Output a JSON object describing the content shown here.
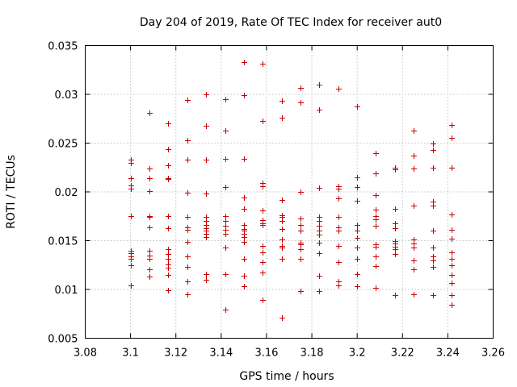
{
  "chart_data": {
    "type": "scatter",
    "title": "Day 204 of 2019, Rate Of TEC Index for receiver aut0",
    "xlabel": "GPS time / hours",
    "ylabel": "ROTI / TECUs",
    "xlim": [
      3.08,
      3.26
    ],
    "ylim": [
      0.005,
      0.035
    ],
    "xticks": [
      "3.08",
      "3.1",
      "3.12",
      "3.14",
      "3.16",
      "3.18",
      "3.2",
      "3.22",
      "3.24",
      "3.26"
    ],
    "yticks": [
      "0.005",
      "0.01",
      "0.015",
      "0.02",
      "0.025",
      "0.03",
      "0.035"
    ],
    "grid": true,
    "marker": "+",
    "color": "#cc0000",
    "series": [
      {
        "name": "ROTI",
        "points": [
          [
            3.1,
            0.0233
          ],
          [
            3.1,
            0.023
          ],
          [
            3.1,
            0.0214
          ],
          [
            3.1,
            0.0207
          ],
          [
            3.1,
            0.0203
          ],
          [
            3.1,
            0.0175
          ],
          [
            3.1,
            0.014
          ],
          [
            3.1,
            0.0137
          ],
          [
            3.1,
            0.0134
          ],
          [
            3.1,
            0.0131
          ],
          [
            3.1,
            0.0125
          ],
          [
            3.1,
            0.0104
          ],
          [
            3.1083,
            0.0281
          ],
          [
            3.1083,
            0.0224
          ],
          [
            3.1083,
            0.0214
          ],
          [
            3.1083,
            0.0201
          ],
          [
            3.1083,
            0.0175
          ],
          [
            3.1083,
            0.0174
          ],
          [
            3.1083,
            0.0164
          ],
          [
            3.1083,
            0.014
          ],
          [
            3.1083,
            0.0135
          ],
          [
            3.1083,
            0.0131
          ],
          [
            3.1083,
            0.0121
          ],
          [
            3.1083,
            0.0113
          ],
          [
            3.1167,
            0.027
          ],
          [
            3.1167,
            0.0244
          ],
          [
            3.1167,
            0.0227
          ],
          [
            3.1167,
            0.0214
          ],
          [
            3.1167,
            0.0213
          ],
          [
            3.1167,
            0.0175
          ],
          [
            3.1167,
            0.0163
          ],
          [
            3.1167,
            0.0141
          ],
          [
            3.1167,
            0.0136
          ],
          [
            3.1167,
            0.0131
          ],
          [
            3.1167,
            0.0126
          ],
          [
            3.1167,
            0.0122
          ],
          [
            3.1167,
            0.0115
          ],
          [
            3.1167,
            0.0099
          ],
          [
            3.125,
            0.0294
          ],
          [
            3.125,
            0.0253
          ],
          [
            3.125,
            0.0233
          ],
          [
            3.125,
            0.0199
          ],
          [
            3.125,
            0.0174
          ],
          [
            3.125,
            0.0164
          ],
          [
            3.125,
            0.0161
          ],
          [
            3.125,
            0.0149
          ],
          [
            3.125,
            0.0134
          ],
          [
            3.125,
            0.0123
          ],
          [
            3.125,
            0.0108
          ],
          [
            3.125,
            0.0095
          ],
          [
            3.1333,
            0.03
          ],
          [
            3.1333,
            0.0268
          ],
          [
            3.1333,
            0.0233
          ],
          [
            3.1333,
            0.0198
          ],
          [
            3.1333,
            0.0174
          ],
          [
            3.1333,
            0.017
          ],
          [
            3.1333,
            0.0166
          ],
          [
            3.1333,
            0.0163
          ],
          [
            3.1333,
            0.016
          ],
          [
            3.1333,
            0.0157
          ],
          [
            3.1333,
            0.0154
          ],
          [
            3.1333,
            0.0116
          ],
          [
            3.1333,
            0.011
          ],
          [
            3.1417,
            0.0295
          ],
          [
            3.1417,
            0.0263
          ],
          [
            3.1417,
            0.0234
          ],
          [
            3.1417,
            0.0205
          ],
          [
            3.1417,
            0.0175
          ],
          [
            3.1417,
            0.017
          ],
          [
            3.1417,
            0.0165
          ],
          [
            3.1417,
            0.0161
          ],
          [
            3.1417,
            0.0157
          ],
          [
            3.1417,
            0.0143
          ],
          [
            3.1417,
            0.0116
          ],
          [
            3.1417,
            0.0079
          ],
          [
            3.15,
            0.0333
          ],
          [
            3.15,
            0.0299
          ],
          [
            3.15,
            0.0234
          ],
          [
            3.15,
            0.0194
          ],
          [
            3.15,
            0.0183
          ],
          [
            3.15,
            0.0166
          ],
          [
            3.15,
            0.0162
          ],
          [
            3.15,
            0.016
          ],
          [
            3.15,
            0.0157
          ],
          [
            3.15,
            0.0154
          ],
          [
            3.15,
            0.0149
          ],
          [
            3.15,
            0.0131
          ],
          [
            3.15,
            0.0114
          ],
          [
            3.15,
            0.0103
          ],
          [
            3.1583,
            0.0331
          ],
          [
            3.1583,
            0.0273
          ],
          [
            3.1583,
            0.0209
          ],
          [
            3.1583,
            0.0206
          ],
          [
            3.1583,
            0.0181
          ],
          [
            3.1583,
            0.0171
          ],
          [
            3.1583,
            0.0168
          ],
          [
            3.1583,
            0.0166
          ],
          [
            3.1583,
            0.0145
          ],
          [
            3.1583,
            0.0138
          ],
          [
            3.1583,
            0.0128
          ],
          [
            3.1583,
            0.0117
          ],
          [
            3.1583,
            0.0089
          ],
          [
            3.1667,
            0.0293
          ],
          [
            3.1667,
            0.0276
          ],
          [
            3.1667,
            0.0192
          ],
          [
            3.1667,
            0.0176
          ],
          [
            3.1667,
            0.0174
          ],
          [
            3.1667,
            0.017
          ],
          [
            3.1667,
            0.0162
          ],
          [
            3.1667,
            0.0151
          ],
          [
            3.1667,
            0.0145
          ],
          [
            3.1667,
            0.0143
          ],
          [
            3.1667,
            0.0131
          ],
          [
            3.1667,
            0.0071
          ],
          [
            3.175,
            0.0307
          ],
          [
            3.175,
            0.0292
          ],
          [
            3.175,
            0.02
          ],
          [
            3.175,
            0.0173
          ],
          [
            3.175,
            0.0166
          ],
          [
            3.175,
            0.016
          ],
          [
            3.175,
            0.0148
          ],
          [
            3.175,
            0.0146
          ],
          [
            3.175,
            0.0141
          ],
          [
            3.175,
            0.0131
          ],
          [
            3.175,
            0.0098
          ],
          [
            3.1833,
            0.031
          ],
          [
            3.1833,
            0.0284
          ],
          [
            3.1833,
            0.0204
          ],
          [
            3.1833,
            0.0174
          ],
          [
            3.1833,
            0.017
          ],
          [
            3.1833,
            0.0165
          ],
          [
            3.1833,
            0.016
          ],
          [
            3.1833,
            0.0156
          ],
          [
            3.1833,
            0.0148
          ],
          [
            3.1833,
            0.0137
          ],
          [
            3.1833,
            0.0114
          ],
          [
            3.1833,
            0.0098
          ],
          [
            3.1917,
            0.0306
          ],
          [
            3.1917,
            0.0206
          ],
          [
            3.1917,
            0.0203
          ],
          [
            3.1917,
            0.0193
          ],
          [
            3.1917,
            0.0174
          ],
          [
            3.1917,
            0.0164
          ],
          [
            3.1917,
            0.016
          ],
          [
            3.1917,
            0.0145
          ],
          [
            3.1917,
            0.0128
          ],
          [
            3.1917,
            0.0108
          ],
          [
            3.1917,
            0.0104
          ],
          [
            3.2,
            0.0288
          ],
          [
            3.2,
            0.0215
          ],
          [
            3.2,
            0.0205
          ],
          [
            3.2,
            0.0191
          ],
          [
            3.2,
            0.0166
          ],
          [
            3.2,
            0.016
          ],
          [
            3.2,
            0.0153
          ],
          [
            3.2,
            0.0143
          ],
          [
            3.2,
            0.0131
          ],
          [
            3.2,
            0.0116
          ],
          [
            3.2,
            0.0103
          ],
          [
            3.2083,
            0.024
          ],
          [
            3.2083,
            0.0219
          ],
          [
            3.2083,
            0.0197
          ],
          [
            3.2083,
            0.0182
          ],
          [
            3.2083,
            0.0175
          ],
          [
            3.2083,
            0.0172
          ],
          [
            3.2083,
            0.0165
          ],
          [
            3.2083,
            0.0146
          ],
          [
            3.2083,
            0.0144
          ],
          [
            3.2083,
            0.0134
          ],
          [
            3.2083,
            0.0124
          ],
          [
            3.2083,
            0.0102
          ],
          [
            3.2167,
            0.0225
          ],
          [
            3.2167,
            0.0223
          ],
          [
            3.2167,
            0.0183
          ],
          [
            3.2167,
            0.0168
          ],
          [
            3.2167,
            0.0163
          ],
          [
            3.2167,
            0.015
          ],
          [
            3.2167,
            0.0147
          ],
          [
            3.2167,
            0.0144
          ],
          [
            3.2167,
            0.0141
          ],
          [
            3.2167,
            0.0136
          ],
          [
            3.2167,
            0.0094
          ],
          [
            3.225,
            0.0263
          ],
          [
            3.225,
            0.0237
          ],
          [
            3.225,
            0.0224
          ],
          [
            3.225,
            0.0186
          ],
          [
            3.225,
            0.0151
          ],
          [
            3.225,
            0.0147
          ],
          [
            3.225,
            0.0143
          ],
          [
            3.225,
            0.013
          ],
          [
            3.225,
            0.0121
          ],
          [
            3.225,
            0.0095
          ],
          [
            3.2333,
            0.025
          ],
          [
            3.2333,
            0.0243
          ],
          [
            3.2333,
            0.0225
          ],
          [
            3.2333,
            0.019
          ],
          [
            3.2333,
            0.0186
          ],
          [
            3.2333,
            0.016
          ],
          [
            3.2333,
            0.0143
          ],
          [
            3.2333,
            0.0134
          ],
          [
            3.2333,
            0.013
          ],
          [
            3.2333,
            0.0123
          ],
          [
            3.2333,
            0.0094
          ],
          [
            3.2417,
            0.0269
          ],
          [
            3.2417,
            0.0255
          ],
          [
            3.2417,
            0.0225
          ],
          [
            3.2417,
            0.0177
          ],
          [
            3.2417,
            0.0161
          ],
          [
            3.2417,
            0.0152
          ],
          [
            3.2417,
            0.0138
          ],
          [
            3.2417,
            0.0131
          ],
          [
            3.2417,
            0.0125
          ],
          [
            3.2417,
            0.0115
          ],
          [
            3.2417,
            0.0107
          ],
          [
            3.2417,
            0.0094
          ],
          [
            3.2417,
            0.0084
          ]
        ]
      }
    ]
  }
}
